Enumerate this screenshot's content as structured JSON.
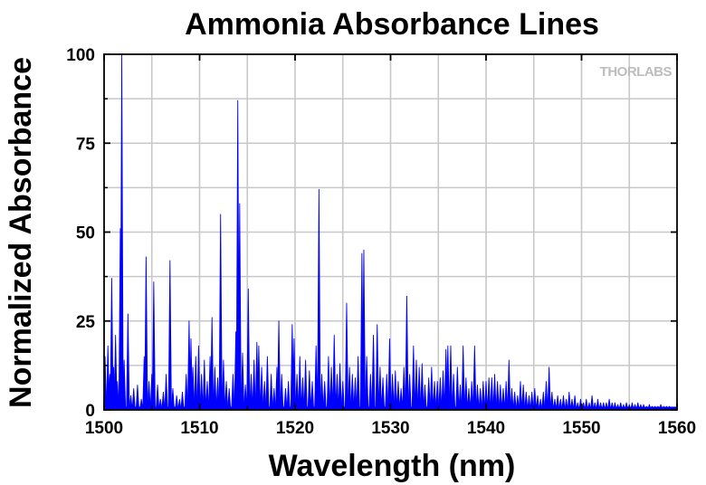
{
  "chart_data": {
    "type": "line",
    "title": "Ammonia Absorbance Lines",
    "xlabel": "Wavelength (nm)",
    "ylabel": "Normalized Absorbance",
    "xlim": [
      1500,
      1560
    ],
    "ylim": [
      0,
      100
    ],
    "xticks": [
      "1500",
      "1510",
      "1520",
      "1530",
      "1540",
      "1550",
      "1560"
    ],
    "yticks": [
      "0",
      "25",
      "50",
      "75",
      "100"
    ],
    "grid": true,
    "series_color": "#0000ff",
    "watermark": "THORLABS",
    "peaks": [
      [
        1500.1,
        15
      ],
      [
        1500.4,
        18
      ],
      [
        1500.6,
        10
      ],
      [
        1500.8,
        37
      ],
      [
        1501.0,
        12
      ],
      [
        1501.2,
        21
      ],
      [
        1501.4,
        8
      ],
      [
        1501.7,
        51
      ],
      [
        1501.85,
        100
      ],
      [
        1502.1,
        14
      ],
      [
        1502.5,
        27
      ],
      [
        1502.8,
        4
      ],
      [
        1503.1,
        6
      ],
      [
        1503.5,
        7
      ],
      [
        1503.9,
        3
      ],
      [
        1504.2,
        15
      ],
      [
        1504.4,
        43
      ],
      [
        1504.7,
        8
      ],
      [
        1505.0,
        10
      ],
      [
        1505.2,
        36
      ],
      [
        1505.6,
        7
      ],
      [
        1505.9,
        3
      ],
      [
        1506.2,
        5
      ],
      [
        1506.5,
        10
      ],
      [
        1506.9,
        42
      ],
      [
        1507.2,
        6
      ],
      [
        1507.6,
        4
      ],
      [
        1507.9,
        3
      ],
      [
        1508.2,
        5
      ],
      [
        1508.6,
        10
      ],
      [
        1508.9,
        25
      ],
      [
        1509.1,
        20
      ],
      [
        1509.3,
        12
      ],
      [
        1509.6,
        15
      ],
      [
        1509.9,
        18
      ],
      [
        1510.2,
        10
      ],
      [
        1510.5,
        14
      ],
      [
        1510.8,
        8
      ],
      [
        1511.1,
        15
      ],
      [
        1511.3,
        26
      ],
      [
        1511.6,
        12
      ],
      [
        1511.9,
        9
      ],
      [
        1512.2,
        55
      ],
      [
        1512.5,
        14
      ],
      [
        1512.8,
        8
      ],
      [
        1513.1,
        6
      ],
      [
        1513.5,
        10
      ],
      [
        1513.8,
        22
      ],
      [
        1514.0,
        87
      ],
      [
        1514.2,
        58
      ],
      [
        1514.5,
        16
      ],
      [
        1514.8,
        7
      ],
      [
        1515.1,
        34
      ],
      [
        1515.4,
        10
      ],
      [
        1515.7,
        14
      ],
      [
        1516.0,
        19
      ],
      [
        1516.2,
        18
      ],
      [
        1516.5,
        12
      ],
      [
        1516.8,
        8
      ],
      [
        1517.1,
        15
      ],
      [
        1517.5,
        10
      ],
      [
        1517.8,
        6
      ],
      [
        1518.1,
        12
      ],
      [
        1518.3,
        25
      ],
      [
        1518.6,
        10
      ],
      [
        1519.0,
        6
      ],
      [
        1519.3,
        8
      ],
      [
        1519.7,
        24
      ],
      [
        1519.9,
        20
      ],
      [
        1520.2,
        10
      ],
      [
        1520.5,
        15
      ],
      [
        1520.8,
        9
      ],
      [
        1521.1,
        14
      ],
      [
        1521.5,
        11
      ],
      [
        1521.8,
        8
      ],
      [
        1522.2,
        18
      ],
      [
        1522.5,
        62
      ],
      [
        1522.8,
        10
      ],
      [
        1523.1,
        8
      ],
      [
        1523.5,
        15
      ],
      [
        1523.8,
        12
      ],
      [
        1524.1,
        21
      ],
      [
        1524.4,
        10
      ],
      [
        1524.7,
        13
      ],
      [
        1525.0,
        8
      ],
      [
        1525.4,
        30
      ],
      [
        1525.7,
        12
      ],
      [
        1526.0,
        10
      ],
      [
        1526.3,
        9
      ],
      [
        1526.6,
        15
      ],
      [
        1527.0,
        44
      ],
      [
        1527.2,
        45
      ],
      [
        1527.5,
        15
      ],
      [
        1527.9,
        10
      ],
      [
        1528.2,
        21
      ],
      [
        1528.6,
        24
      ],
      [
        1528.9,
        12
      ],
      [
        1529.2,
        9
      ],
      [
        1529.6,
        10
      ],
      [
        1529.9,
        20
      ],
      [
        1530.2,
        10
      ],
      [
        1530.5,
        11
      ],
      [
        1530.8,
        8
      ],
      [
        1531.1,
        6
      ],
      [
        1531.4,
        12
      ],
      [
        1531.7,
        32
      ],
      [
        1532.0,
        10
      ],
      [
        1532.4,
        18
      ],
      [
        1532.7,
        14
      ],
      [
        1533.0,
        12
      ],
      [
        1533.3,
        13
      ],
      [
        1533.6,
        7
      ],
      [
        1534.0,
        9
      ],
      [
        1534.3,
        12
      ],
      [
        1534.6,
        8
      ],
      [
        1534.9,
        8
      ],
      [
        1535.2,
        9
      ],
      [
        1535.5,
        11
      ],
      [
        1535.8,
        17
      ],
      [
        1536.0,
        18
      ],
      [
        1536.3,
        18
      ],
      [
        1536.6,
        10
      ],
      [
        1537.0,
        12
      ],
      [
        1537.3,
        7
      ],
      [
        1537.6,
        18
      ],
      [
        1537.9,
        9
      ],
      [
        1538.2,
        6
      ],
      [
        1538.5,
        8
      ],
      [
        1538.8,
        18
      ],
      [
        1539.1,
        7
      ],
      [
        1539.4,
        6
      ],
      [
        1539.7,
        8
      ],
      [
        1540.0,
        8
      ],
      [
        1540.3,
        9
      ],
      [
        1540.6,
        9
      ],
      [
        1540.9,
        10
      ],
      [
        1541.2,
        8
      ],
      [
        1541.5,
        7
      ],
      [
        1541.8,
        6
      ],
      [
        1542.1,
        8
      ],
      [
        1542.4,
        14
      ],
      [
        1542.7,
        6
      ],
      [
        1543.0,
        5
      ],
      [
        1543.3,
        4
      ],
      [
        1543.6,
        8
      ],
      [
        1543.9,
        7
      ],
      [
        1544.2,
        5
      ],
      [
        1544.5,
        4
      ],
      [
        1544.8,
        5
      ],
      [
        1545.1,
        6
      ],
      [
        1545.4,
        4
      ],
      [
        1545.7,
        3
      ],
      [
        1546.0,
        5
      ],
      [
        1546.3,
        8
      ],
      [
        1546.6,
        12
      ],
      [
        1546.9,
        5
      ],
      [
        1547.2,
        3
      ],
      [
        1547.5,
        4
      ],
      [
        1547.8,
        3
      ],
      [
        1548.1,
        4
      ],
      [
        1548.4,
        3
      ],
      [
        1548.7,
        5
      ],
      [
        1549.0,
        3
      ],
      [
        1549.3,
        4
      ],
      [
        1549.6,
        2
      ],
      [
        1549.9,
        3
      ],
      [
        1550.2,
        2
      ],
      [
        1550.5,
        3
      ],
      [
        1550.8,
        2
      ],
      [
        1551.1,
        4
      ],
      [
        1551.4,
        2
      ],
      [
        1551.7,
        3
      ],
      [
        1552.0,
        2
      ],
      [
        1552.3,
        2
      ],
      [
        1552.6,
        2
      ],
      [
        1552.9,
        3
      ],
      [
        1553.2,
        2
      ],
      [
        1553.5,
        2
      ],
      [
        1553.8,
        1.5
      ],
      [
        1554.1,
        2
      ],
      [
        1554.4,
        1.5
      ],
      [
        1554.7,
        2
      ],
      [
        1555.0,
        1.5
      ],
      [
        1555.3,
        2
      ],
      [
        1555.6,
        1.5
      ],
      [
        1555.9,
        2
      ],
      [
        1556.2,
        1.5
      ],
      [
        1556.5,
        1.5
      ],
      [
        1556.8,
        1
      ],
      [
        1557.1,
        1.5
      ],
      [
        1557.4,
        1
      ],
      [
        1557.7,
        1
      ],
      [
        1558.0,
        1
      ],
      [
        1558.3,
        1.5
      ],
      [
        1558.6,
        1
      ],
      [
        1558.9,
        1
      ],
      [
        1559.2,
        1
      ],
      [
        1559.5,
        0.8
      ],
      [
        1559.8,
        0.8
      ]
    ]
  }
}
